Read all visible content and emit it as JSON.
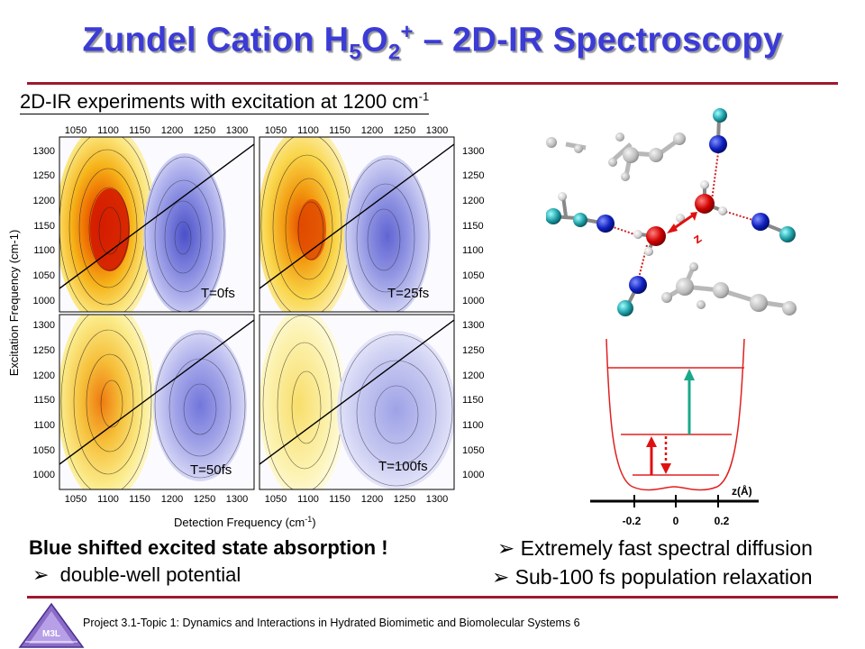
{
  "title": {
    "main": "Zundel Cation H",
    "sub1": "5",
    "o": "O",
    "sub2": "2",
    "sup": "+",
    "rest": " – 2D-IR Spectroscopy"
  },
  "subtitle": {
    "text": "2D-IR experiments with excitation at 1200 cm",
    "sup": "-1"
  },
  "spectra": {
    "x_ticks": [
      "1050",
      "1100",
      "1150",
      "1200",
      "1250",
      "1300"
    ],
    "y_ticks": [
      "1300",
      "1250",
      "1200",
      "1150",
      "1100",
      "1050",
      "1000"
    ],
    "xlabel": "Detection Frequency (cm",
    "xlabel_sup": "-1",
    "xlabel_end": ")",
    "ylabel": "Excitation Frequency (cm-1)",
    "panels": [
      "T=0fs",
      "T=25fs",
      "T=50fs",
      "T=100fs"
    ]
  },
  "potential": {
    "axis_label": "z(Å)",
    "ticks": [
      "-0.2",
      "0",
      "0.2"
    ]
  },
  "molecule": {
    "label": "z"
  },
  "bullets": {
    "blue_shift": "Blue shifted excited state absorption !",
    "double_well": "double-well potential",
    "diffusion": "Extremely fast spectral diffusion",
    "relaxation": "Sub-100 fs population relaxation",
    "marker": "➢"
  },
  "footer": {
    "text": "Project 3.1-Topic 1: Dynamics and Interactions in Hydrated Biomimetic and Biomolecular Systems 6",
    "logo": "M3L"
  },
  "colors": {
    "title": "#3b3bd6",
    "rule": "#a01830",
    "potential": "#e02020",
    "arrow_green": "#1aa88a"
  }
}
